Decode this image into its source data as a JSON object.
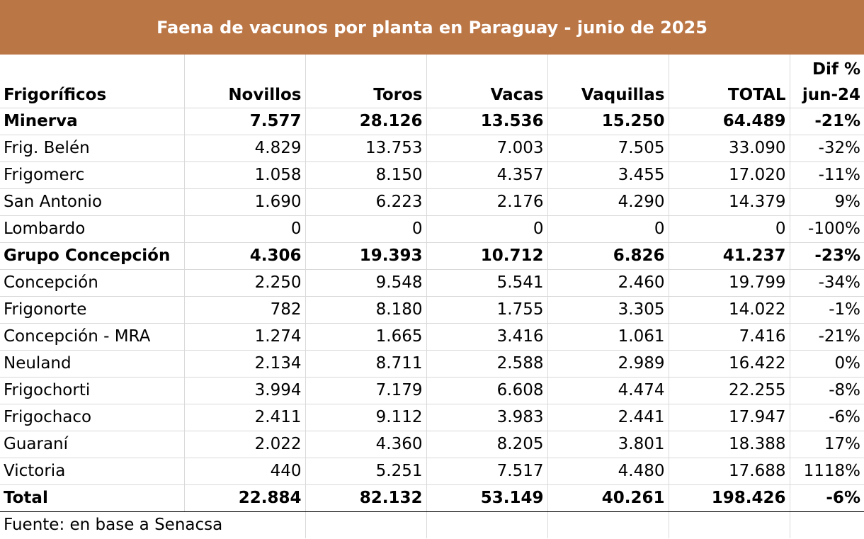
{
  "title": "Faena de vacunos por planta en Paraguay - junio de 2025",
  "headers": [
    "Frigoríficos",
    "Novillos",
    "Toros",
    "Vacas",
    "Vaquillas",
    "TOTAL"
  ],
  "last_header": {
    "line1": "Dif %",
    "line2": "jun-24"
  },
  "rows": [
    {
      "name": "Minerva",
      "novillos": "7.577",
      "toros": "28.126",
      "vacas": "13.536",
      "vaquillas": "15.250",
      "total": "64.489",
      "dif": "-21%"
    },
    {
      "name": "Frig. Belén",
      "novillos": "4.829",
      "toros": "13.753",
      "vacas": "7.003",
      "vaquillas": "7.505",
      "total": "33.090",
      "dif": "-32%"
    },
    {
      "name": "Frigomerc",
      "novillos": "1.058",
      "toros": "8.150",
      "vacas": "4.357",
      "vaquillas": "3.455",
      "total": "17.020",
      "dif": "-11%"
    },
    {
      "name": "San Antonio",
      "novillos": "1.690",
      "toros": "6.223",
      "vacas": "2.176",
      "vaquillas": "4.290",
      "total": "14.379",
      "dif": "9%"
    },
    {
      "name": "Lombardo",
      "novillos": "0",
      "toros": "0",
      "vacas": "0",
      "vaquillas": "0",
      "total": "0",
      "dif": "-100%"
    },
    {
      "name": "Grupo Concepción",
      "novillos": "4.306",
      "toros": "19.393",
      "vacas": "10.712",
      "vaquillas": "6.826",
      "total": "41.237",
      "dif": "-23%"
    },
    {
      "name": "Concepción",
      "novillos": "2.250",
      "toros": "9.548",
      "vacas": "5.541",
      "vaquillas": "2.460",
      "total": "19.799",
      "dif": "-34%"
    },
    {
      "name": "Frigonorte",
      "novillos": "782",
      "toros": "8.180",
      "vacas": "1.755",
      "vaquillas": "3.305",
      "total": "14.022",
      "dif": "-1%"
    },
    {
      "name": "Concepción - MRA",
      "novillos": "1.274",
      "toros": "1.665",
      "vacas": "3.416",
      "vaquillas": "1.061",
      "total": "7.416",
      "dif": "-21%"
    },
    {
      "name": "Neuland",
      "novillos": "2.134",
      "toros": "8.711",
      "vacas": "2.588",
      "vaquillas": "2.989",
      "total": "16.422",
      "dif": "0%"
    },
    {
      "name": "Frigochorti",
      "novillos": "3.994",
      "toros": "7.179",
      "vacas": "6.608",
      "vaquillas": "4.474",
      "total": "22.255",
      "dif": "-8%"
    },
    {
      "name": "Frigochaco",
      "novillos": "2.411",
      "toros": "9.112",
      "vacas": "3.983",
      "vaquillas": "2.441",
      "total": "17.947",
      "dif": "-6%"
    },
    {
      "name": "Guaraní",
      "novillos": "2.022",
      "toros": "4.360",
      "vacas": "8.205",
      "vaquillas": "3.801",
      "total": "18.388",
      "dif": "17%"
    },
    {
      "name": "Victoria",
      "novillos": "440",
      "toros": "5.251",
      "vacas": "7.517",
      "vaquillas": "4.480",
      "total": "17.688",
      "dif": "1118%"
    },
    {
      "name": "Total",
      "novillos": "22.884",
      "toros": "82.132",
      "vacas": "53.149",
      "vaquillas": "40.261",
      "total": "198.426",
      "dif": "-6%"
    }
  ],
  "source": "Fuente: en base a Senacsa",
  "colors": {
    "title_bg": "#BB7646",
    "title_text": "#FFFFFF",
    "grid": "#D9D9D9"
  }
}
